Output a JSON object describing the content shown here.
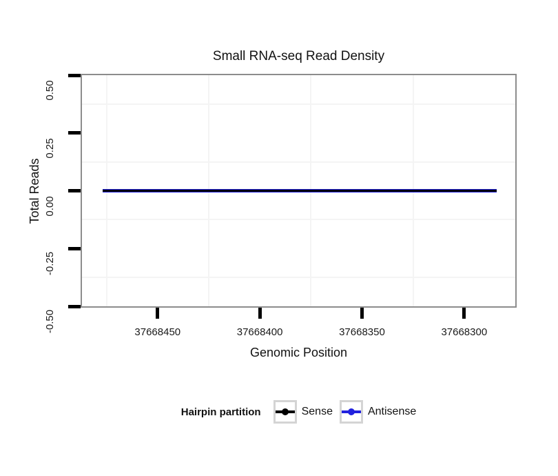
{
  "chart_data": {
    "type": "line",
    "title": "Small RNA-seq Read Density",
    "xlabel": "Genomic Position",
    "ylabel": "Total Reads",
    "grid": "minor-only",
    "x_axis": {
      "reversed": true,
      "domain": [
        37668487,
        37668275
      ],
      "ticks": [
        37668450,
        37668400,
        37668350,
        37668300
      ],
      "tick_labels": [
        "37668450",
        "37668400",
        "37668350",
        "37668300"
      ],
      "minor_gridlines": [
        37668475,
        37668425,
        37668375,
        37668325
      ]
    },
    "y_axis": {
      "domain": [
        0.5,
        -0.5
      ],
      "ticks": [
        0.5,
        0.25,
        0,
        -0.25,
        -0.5
      ],
      "tick_labels": [
        "0.50",
        "0.25",
        "0.00",
        "-0.25",
        "-0.50"
      ],
      "minor_gridlines": [
        0.375,
        0.125,
        -0.125,
        -0.375
      ]
    },
    "series": [
      {
        "name": "Sense",
        "color": "#000000",
        "y_constant": 0,
        "x_span": [
          37668477,
          37668284
        ]
      },
      {
        "name": "Antisense",
        "color": "#2121DE",
        "y_constant": 0,
        "x_span": [
          37668477,
          37668284
        ]
      }
    ],
    "legend": {
      "title": "Hairpin partition",
      "position": "bottom",
      "entries": [
        {
          "label": "Sense",
          "color": "#000000"
        },
        {
          "label": "Antisense",
          "color": "#2121DE"
        }
      ]
    }
  },
  "colors": {
    "panel_border": "#8C8C8C",
    "minor_gridline": "#F4F4F4",
    "tick": "#000000",
    "legend_key_border": "#D4D4D4",
    "sense": "#000000",
    "antisense": "#2121DE"
  }
}
